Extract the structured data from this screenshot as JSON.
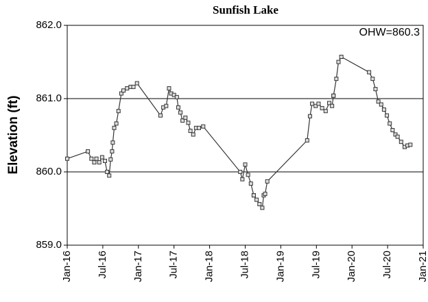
{
  "chart_data": {
    "type": "line",
    "title": "Sunfish Lake",
    "ylabel": "Elevation (ft)",
    "annotation": "OHW=860.3",
    "x": [
      2016.0,
      2016.29,
      2016.34,
      2016.38,
      2016.41,
      2016.45,
      2016.49,
      2016.53,
      2016.56,
      2016.59,
      2016.61,
      2016.63,
      2016.64,
      2016.66,
      2016.69,
      2016.72,
      2016.76,
      2016.79,
      2016.84,
      2016.89,
      2016.93,
      2016.98,
      2017.31,
      2017.35,
      2017.39,
      2017.43,
      2017.46,
      2017.5,
      2017.54,
      2017.56,
      2017.59,
      2017.62,
      2017.66,
      2017.7,
      2017.73,
      2017.77,
      2017.81,
      2017.85,
      2017.91,
      2018.43,
      2018.46,
      2018.5,
      2018.54,
      2018.58,
      2018.62,
      2018.62,
      2018.66,
      2018.7,
      2018.74,
      2018.76,
      2018.78,
      2018.81,
      2019.37,
      2019.41,
      2019.44,
      2019.49,
      2019.53,
      2019.58,
      2019.63,
      2019.68,
      2019.72,
      2019.74,
      2019.74,
      2019.78,
      2019.81,
      2019.85,
      2020.24,
      2020.29,
      2020.33,
      2020.37,
      2020.41,
      2020.45,
      2020.49,
      2020.53,
      2020.57,
      2020.61,
      2020.64,
      2020.69,
      2020.74,
      2020.78,
      2020.82
    ],
    "series": [
      {
        "name": "Elevation",
        "color": "#333333",
        "values": [
          860.18,
          860.28,
          860.18,
          860.13,
          860.18,
          860.13,
          860.2,
          860.15,
          860.0,
          859.95,
          860.17,
          860.28,
          860.4,
          860.6,
          860.66,
          860.83,
          861.07,
          861.11,
          861.14,
          861.16,
          861.16,
          861.21,
          860.77,
          860.88,
          860.9,
          861.14,
          861.07,
          861.05,
          861.02,
          860.88,
          860.81,
          860.7,
          860.74,
          860.67,
          860.56,
          860.51,
          860.6,
          860.6,
          860.62,
          860.0,
          859.9,
          860.1,
          859.96,
          859.84,
          859.68,
          859.68,
          859.62,
          859.56,
          859.51,
          859.68,
          859.7,
          859.87,
          860.43,
          860.76,
          860.93,
          860.9,
          860.93,
          860.87,
          860.83,
          860.94,
          860.9,
          861.04,
          861.04,
          861.27,
          861.5,
          861.57,
          861.36,
          861.27,
          861.13,
          860.96,
          860.92,
          860.85,
          860.77,
          860.66,
          860.57,
          860.51,
          860.48,
          860.41,
          860.34,
          860.36,
          860.37
        ]
      }
    ],
    "xlim": [
      2016,
      2021
    ],
    "xticks": [
      {
        "value": 2016,
        "label": "Jan-16"
      },
      {
        "value": 2016.5,
        "label": "Jul-16"
      },
      {
        "value": 2017,
        "label": "Jan-17"
      },
      {
        "value": 2017.5,
        "label": "Jul-17"
      },
      {
        "value": 2018,
        "label": "Jan-18"
      },
      {
        "value": 2018.5,
        "label": "Jul-18"
      },
      {
        "value": 2019,
        "label": "Jan-19"
      },
      {
        "value": 2019.5,
        "label": "Jul-19"
      },
      {
        "value": 2020,
        "label": "Jan-20"
      },
      {
        "value": 2020.5,
        "label": "Jul-20"
      },
      {
        "value": 2021,
        "label": "Jan-21"
      }
    ],
    "ylim": [
      859,
      862
    ],
    "yticks": [
      {
        "value": 859,
        "label": "859.0"
      },
      {
        "value": 860,
        "label": "860.0"
      },
      {
        "value": 861,
        "label": "861.0"
      },
      {
        "value": 862,
        "label": "862.0"
      }
    ],
    "grid": true
  }
}
